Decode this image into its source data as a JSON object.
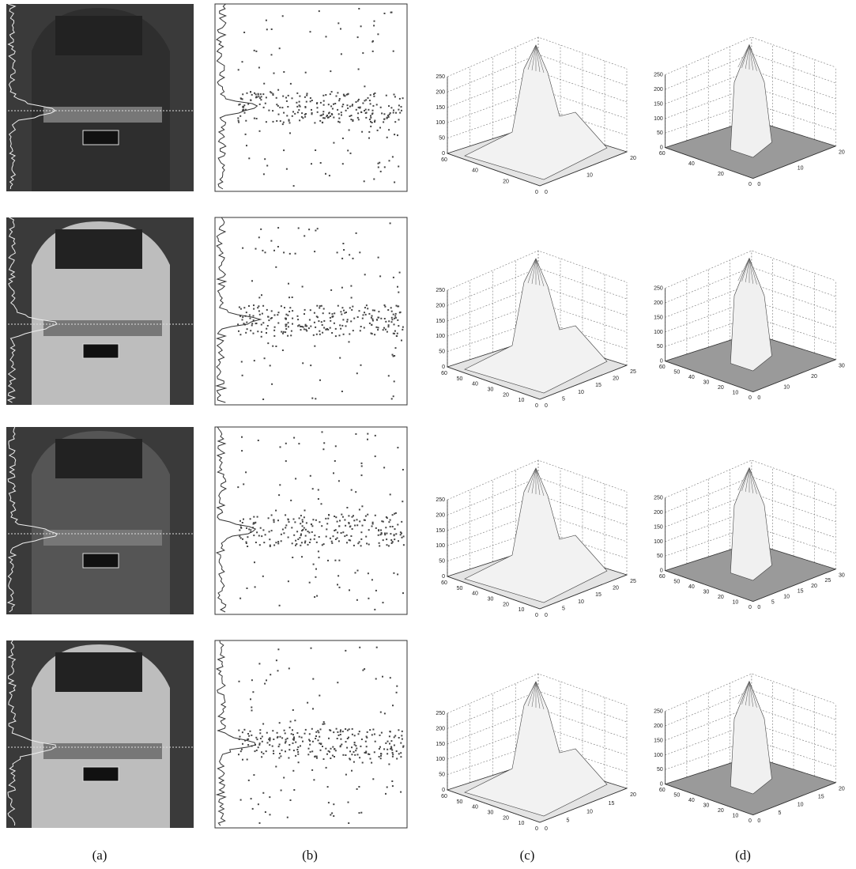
{
  "figure": {
    "panels": [
      {
        "plots": [
          {
            "z_ticks": [
              0,
              50,
              100,
              150,
              200,
              250
            ],
            "left_ticks": [
              60,
              40,
              20,
              0
            ],
            "right_ticks": [
              0,
              10,
              20
            ]
          },
          {
            "z_ticks": [
              0,
              50,
              100,
              150,
              200,
              250
            ],
            "left_ticks": [
              60,
              40,
              20,
              0
            ],
            "right_ticks": [
              0,
              10,
              20
            ]
          }
        ]
      },
      {
        "plots": [
          {
            "z_ticks": [
              0,
              50,
              100,
              150,
              200,
              250
            ],
            "left_ticks": [
              60,
              50,
              40,
              30,
              20,
              10,
              0
            ],
            "right_ticks": [
              0,
              5,
              10,
              15,
              20,
              25
            ]
          },
          {
            "z_ticks": [
              0,
              50,
              100,
              150,
              200,
              250
            ],
            "left_ticks": [
              60,
              50,
              40,
              30,
              20,
              10,
              0
            ],
            "right_ticks": [
              0,
              10,
              20,
              30
            ]
          }
        ]
      },
      {
        "plots": [
          {
            "z_ticks": [
              0,
              50,
              100,
              150,
              200,
              250
            ],
            "left_ticks": [
              60,
              50,
              40,
              30,
              20,
              10,
              0
            ],
            "right_ticks": [
              0,
              5,
              10,
              15,
              20,
              25
            ]
          },
          {
            "z_ticks": [
              0,
              50,
              100,
              150,
              200,
              250
            ],
            "left_ticks": [
              60,
              50,
              40,
              30,
              20,
              10,
              0
            ],
            "right_ticks": [
              0,
              5,
              10,
              15,
              20,
              25,
              30
            ]
          }
        ]
      },
      {
        "plots": [
          {
            "z_ticks": [
              0,
              50,
              100,
              150,
              200,
              250
            ],
            "left_ticks": [
              60,
              50,
              40,
              30,
              20,
              10,
              0
            ],
            "right_ticks": [
              0,
              5,
              10,
              15,
              20
            ]
          },
          {
            "z_ticks": [
              0,
              50,
              100,
              150,
              200,
              250
            ],
            "left_ticks": [
              60,
              50,
              40,
              30,
              20,
              10,
              0
            ],
            "right_ticks": [
              0,
              5,
              10,
              15,
              20
            ]
          }
        ]
      }
    ],
    "captions": [
      "(a)",
      "(b)",
      "(c)",
      "(d)"
    ]
  }
}
